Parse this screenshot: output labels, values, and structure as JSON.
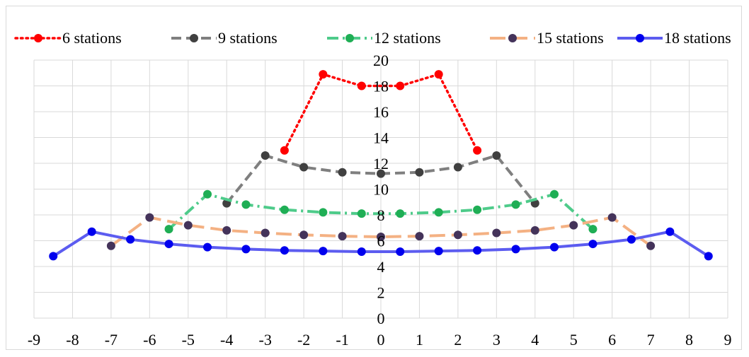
{
  "chart_data": {
    "type": "line",
    "title": "",
    "xlabel": "",
    "ylabel": "",
    "xlim": [
      -9,
      9
    ],
    "ylim": [
      0,
      20
    ],
    "x_ticks": [
      "-9",
      "-8",
      "-7",
      "-6",
      "-5",
      "-4",
      "-3",
      "-2",
      "-1",
      "0",
      "1",
      "2",
      "3",
      "4",
      "5",
      "6",
      "7",
      "8",
      "9"
    ],
    "y_ticks": [
      "0",
      "2",
      "4",
      "6",
      "8",
      "10",
      "12",
      "14",
      "16",
      "18",
      "20"
    ],
    "grid": true,
    "legend_position": "top",
    "series": [
      {
        "name": "6 stations",
        "color": "#ff0000",
        "line_style": "dotted",
        "x": [
          -2.5,
          -1.5,
          -0.5,
          0.5,
          1.5,
          2.5
        ],
        "y": [
          13.0,
          18.9,
          18.0,
          18.0,
          18.9,
          13.0
        ]
      },
      {
        "name": "9 stations",
        "color": "#7f7f7f",
        "marker_color": "#404040",
        "line_style": "dash",
        "x": [
          -4,
          -3,
          -2,
          -1,
          0,
          1,
          2,
          3,
          4
        ],
        "y": [
          8.9,
          12.6,
          11.7,
          11.3,
          11.2,
          11.3,
          11.7,
          12.6,
          8.9
        ]
      },
      {
        "name": "12 stations",
        "color": "#4ecb8a",
        "marker_color": "#1fae55",
        "line_style": "dashdot",
        "x": [
          -5.5,
          -4.5,
          -3.5,
          -2.5,
          -1.5,
          -0.5,
          0.5,
          1.5,
          2.5,
          3.5,
          4.5,
          5.5
        ],
        "y": [
          6.9,
          9.6,
          8.8,
          8.4,
          8.2,
          8.1,
          8.1,
          8.2,
          8.4,
          8.8,
          9.6,
          6.9
        ]
      },
      {
        "name": "15 stations",
        "color": "#f4b183",
        "marker_color": "#44335a",
        "line_style": "longdash",
        "x": [
          -7,
          -6,
          -5,
          -4,
          -3,
          -2,
          -1,
          0,
          1,
          2,
          3,
          4,
          5,
          6,
          7
        ],
        "y": [
          5.6,
          7.8,
          7.2,
          6.8,
          6.6,
          6.45,
          6.35,
          6.3,
          6.35,
          6.45,
          6.6,
          6.8,
          7.2,
          7.8,
          5.6
        ]
      },
      {
        "name": "18 stations",
        "color": "#5c5cf0",
        "marker_color": "#0000ee",
        "line_style": "solid",
        "x": [
          -8.5,
          -7.5,
          -6.5,
          -5.5,
          -4.5,
          -3.5,
          -2.5,
          -1.5,
          -0.5,
          0.5,
          1.5,
          2.5,
          3.5,
          4.5,
          5.5,
          6.5,
          7.5,
          8.5
        ],
        "y": [
          4.8,
          6.7,
          6.1,
          5.75,
          5.5,
          5.35,
          5.25,
          5.2,
          5.15,
          5.15,
          5.2,
          5.25,
          5.35,
          5.5,
          5.75,
          6.1,
          6.7,
          4.8
        ]
      }
    ]
  }
}
